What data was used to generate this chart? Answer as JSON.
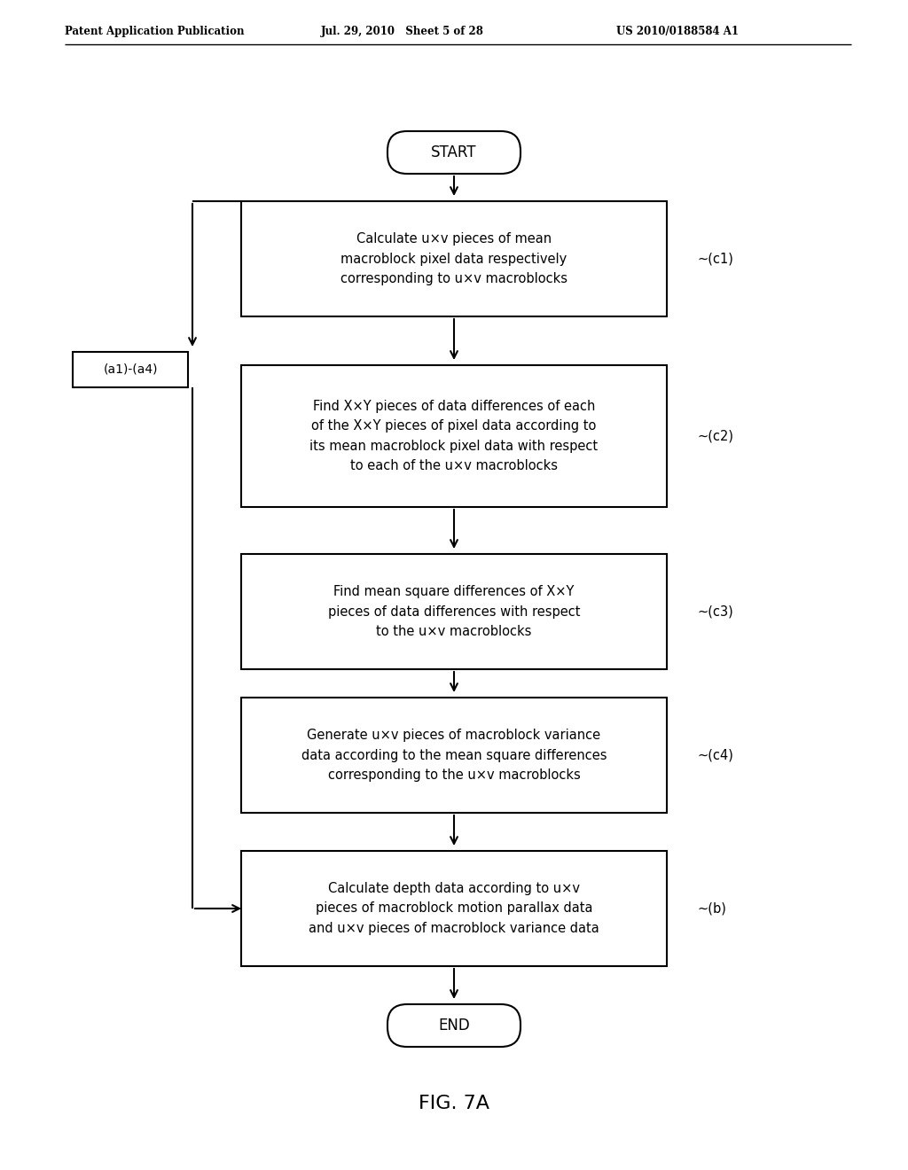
{
  "header_left": "Patent Application Publication",
  "header_mid": "Jul. 29, 2010   Sheet 5 of 28",
  "header_right": "US 2010/0188584 A1",
  "figure_label": "FIG. 7A",
  "start_label": "START",
  "end_label": "END",
  "boxes": [
    {
      "id": "c1",
      "text": "Calculate u×v pieces of mean\nmacroblock pixel data respectively\ncorresponding to u×v macroblocks",
      "label": "(c1)"
    },
    {
      "id": "c2",
      "text": "Find X×Y pieces of data differences of each\nof the X×Y pieces of pixel data according to\nits mean macroblock pixel data with respect\nto each of the u×v macroblocks",
      "label": "(c2)"
    },
    {
      "id": "c3",
      "text": "Find mean square differences of X×Y\npieces of data differences with respect\nto the u×v macroblocks",
      "label": "(c3)"
    },
    {
      "id": "c4",
      "text": "Generate u×v pieces of macroblock variance\ndata according to the mean square differences\ncorresponding to the u×v macroblocks",
      "label": "(c4)"
    },
    {
      "id": "b",
      "text": "Calculate depth data according to u×v\npieces of macroblock motion parallax data\nand u×v pieces of macroblock variance data",
      "label": "(b)"
    }
  ],
  "side_box_label": "(a1)-(a4)",
  "bg_color": "#ffffff",
  "box_color": "#ffffff",
  "line_color": "#000000",
  "text_color": "#000000"
}
